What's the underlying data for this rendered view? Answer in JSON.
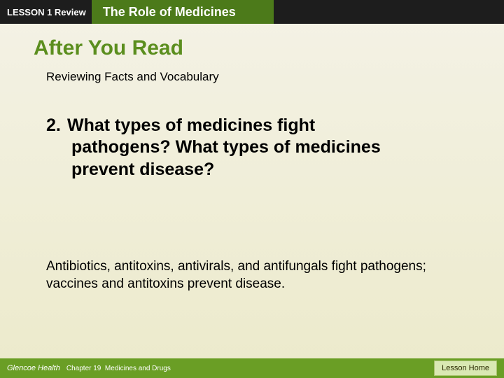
{
  "topbar": {
    "lesson_label": "LESSON 1 Review",
    "title": "The Role of Medicines"
  },
  "section": {
    "heading": "After You Read",
    "subheading": "Reviewing Facts and Vocabulary"
  },
  "question": {
    "number": "2.",
    "line1": "What types of medicines fight",
    "line2": "pathogens? What types of medicines",
    "line3": "prevent disease?"
  },
  "answer": {
    "text": "Antibiotics, antitoxins, antivirals, and antifungals fight pathogens; vaccines and antitoxins prevent disease."
  },
  "footer": {
    "brand": "Glencoe Health",
    "chapter": "Chapter 19  Medicines and Drugs",
    "lesson_home": "Lesson Home"
  },
  "colors": {
    "topbar_bg": "#1d1d1d",
    "accent_green": "#4c7a1a",
    "heading_green": "#5b8e1e",
    "footer_green": "#6a9e25",
    "button_bg": "#d9e8b3",
    "slide_bg_top": "#f4f2e6",
    "slide_bg_bottom": "#eceacb"
  }
}
